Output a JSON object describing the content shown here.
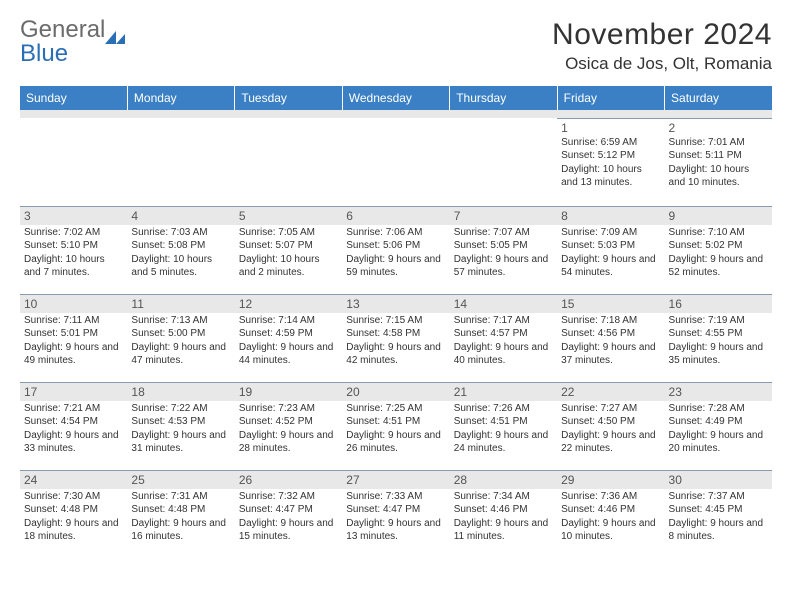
{
  "logo": {
    "text_gray": "General",
    "text_blue": "Blue"
  },
  "title": "November 2024",
  "location": "Osica de Jos, Olt, Romania",
  "colors": {
    "header_bg": "#3b80c4",
    "header_fg": "#ffffff",
    "spacer_bg": "#e8e8e8",
    "border": "#8a9bb0",
    "text": "#333333",
    "logo_gray": "#6b6b6b",
    "logo_blue": "#2a6fb5"
  },
  "day_headers": [
    "Sunday",
    "Monday",
    "Tuesday",
    "Wednesday",
    "Thursday",
    "Friday",
    "Saturday"
  ],
  "weeks": [
    [
      null,
      null,
      null,
      null,
      null,
      {
        "n": "1",
        "sr": "6:59 AM",
        "ss": "5:12 PM",
        "dl": "10 hours and 13 minutes."
      },
      {
        "n": "2",
        "sr": "7:01 AM",
        "ss": "5:11 PM",
        "dl": "10 hours and 10 minutes."
      }
    ],
    [
      {
        "n": "3",
        "sr": "7:02 AM",
        "ss": "5:10 PM",
        "dl": "10 hours and 7 minutes."
      },
      {
        "n": "4",
        "sr": "7:03 AM",
        "ss": "5:08 PM",
        "dl": "10 hours and 5 minutes."
      },
      {
        "n": "5",
        "sr": "7:05 AM",
        "ss": "5:07 PM",
        "dl": "10 hours and 2 minutes."
      },
      {
        "n": "6",
        "sr": "7:06 AM",
        "ss": "5:06 PM",
        "dl": "9 hours and 59 minutes."
      },
      {
        "n": "7",
        "sr": "7:07 AM",
        "ss": "5:05 PM",
        "dl": "9 hours and 57 minutes."
      },
      {
        "n": "8",
        "sr": "7:09 AM",
        "ss": "5:03 PM",
        "dl": "9 hours and 54 minutes."
      },
      {
        "n": "9",
        "sr": "7:10 AM",
        "ss": "5:02 PM",
        "dl": "9 hours and 52 minutes."
      }
    ],
    [
      {
        "n": "10",
        "sr": "7:11 AM",
        "ss": "5:01 PM",
        "dl": "9 hours and 49 minutes."
      },
      {
        "n": "11",
        "sr": "7:13 AM",
        "ss": "5:00 PM",
        "dl": "9 hours and 47 minutes."
      },
      {
        "n": "12",
        "sr": "7:14 AM",
        "ss": "4:59 PM",
        "dl": "9 hours and 44 minutes."
      },
      {
        "n": "13",
        "sr": "7:15 AM",
        "ss": "4:58 PM",
        "dl": "9 hours and 42 minutes."
      },
      {
        "n": "14",
        "sr": "7:17 AM",
        "ss": "4:57 PM",
        "dl": "9 hours and 40 minutes."
      },
      {
        "n": "15",
        "sr": "7:18 AM",
        "ss": "4:56 PM",
        "dl": "9 hours and 37 minutes."
      },
      {
        "n": "16",
        "sr": "7:19 AM",
        "ss": "4:55 PM",
        "dl": "9 hours and 35 minutes."
      }
    ],
    [
      {
        "n": "17",
        "sr": "7:21 AM",
        "ss": "4:54 PM",
        "dl": "9 hours and 33 minutes."
      },
      {
        "n": "18",
        "sr": "7:22 AM",
        "ss": "4:53 PM",
        "dl": "9 hours and 31 minutes."
      },
      {
        "n": "19",
        "sr": "7:23 AM",
        "ss": "4:52 PM",
        "dl": "9 hours and 28 minutes."
      },
      {
        "n": "20",
        "sr": "7:25 AM",
        "ss": "4:51 PM",
        "dl": "9 hours and 26 minutes."
      },
      {
        "n": "21",
        "sr": "7:26 AM",
        "ss": "4:51 PM",
        "dl": "9 hours and 24 minutes."
      },
      {
        "n": "22",
        "sr": "7:27 AM",
        "ss": "4:50 PM",
        "dl": "9 hours and 22 minutes."
      },
      {
        "n": "23",
        "sr": "7:28 AM",
        "ss": "4:49 PM",
        "dl": "9 hours and 20 minutes."
      }
    ],
    [
      {
        "n": "24",
        "sr": "7:30 AM",
        "ss": "4:48 PM",
        "dl": "9 hours and 18 minutes."
      },
      {
        "n": "25",
        "sr": "7:31 AM",
        "ss": "4:48 PM",
        "dl": "9 hours and 16 minutes."
      },
      {
        "n": "26",
        "sr": "7:32 AM",
        "ss": "4:47 PM",
        "dl": "9 hours and 15 minutes."
      },
      {
        "n": "27",
        "sr": "7:33 AM",
        "ss": "4:47 PM",
        "dl": "9 hours and 13 minutes."
      },
      {
        "n": "28",
        "sr": "7:34 AM",
        "ss": "4:46 PM",
        "dl": "9 hours and 11 minutes."
      },
      {
        "n": "29",
        "sr": "7:36 AM",
        "ss": "4:46 PM",
        "dl": "9 hours and 10 minutes."
      },
      {
        "n": "30",
        "sr": "7:37 AM",
        "ss": "4:45 PM",
        "dl": "9 hours and 8 minutes."
      }
    ]
  ],
  "labels": {
    "sunrise": "Sunrise: ",
    "sunset": "Sunset: ",
    "daylight": "Daylight: "
  }
}
